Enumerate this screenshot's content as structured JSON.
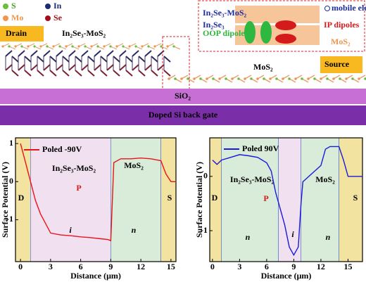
{
  "diagram": {
    "atoms": [
      "S",
      "In",
      "Mo",
      "Se"
    ],
    "drain": "Drain",
    "heterostructure": "In₂Se₃-MoS₂",
    "mos2": "MoS₂",
    "source": "Source",
    "sio2": "SiO₂",
    "gate": "Doped Si back gate",
    "inset": {
      "top": "In₂Se₃-MoS₂",
      "in2se3": "In₂Se₃",
      "oop": "OOP dipoles",
      "mobile": "mobile electrons",
      "ip": "IP dipoles",
      "mos2": "MoS₂"
    }
  },
  "chart_data": [
    {
      "type": "line",
      "xlabel": "Distance (μm)",
      "ylabel": "Surface Potential (V)",
      "xlim": [
        -0.5,
        15.5
      ],
      "ylim": [
        -2.1,
        1.15
      ],
      "xticks": [
        0,
        3,
        6,
        9,
        12,
        15
      ],
      "yticks": [
        1,
        0,
        -1
      ],
      "regions": [
        {
          "start": -0.5,
          "end": 1,
          "color": "#f3e3a0"
        },
        {
          "start": 1,
          "end": 9,
          "color": "#f1e1f0"
        },
        {
          "start": 9,
          "end": 14,
          "color": "#d9ecd9"
        },
        {
          "start": 14,
          "end": 15.5,
          "color": "#f3e3a0"
        }
      ],
      "annotations": [
        "D",
        "i",
        "n",
        "S",
        "In₂Se₃-MoS₂",
        "MoS₂",
        "P"
      ],
      "series": [
        {
          "name": "Poled -90V",
          "color": "#e8141a",
          "x": [
            0,
            0.5,
            1,
            1.5,
            2,
            2.3,
            3,
            4,
            5,
            6,
            7,
            8,
            8.7,
            9,
            9.3,
            10,
            11,
            12,
            13,
            14,
            14.5,
            15,
            15.5
          ],
          "values": [
            1,
            0.5,
            0,
            -0.5,
            -0.85,
            -1,
            -1.35,
            -1.4,
            -1.42,
            -1.45,
            -1.47,
            -1.5,
            -1.52,
            -1.55,
            0.5,
            0.6,
            0.6,
            0.62,
            0.6,
            0.55,
            0.2,
            0,
            0
          ]
        }
      ]
    },
    {
      "type": "line",
      "xlabel": "Distance (μm)",
      "ylabel": "Surface Potential (V)",
      "xlim": [
        -0.3,
        16.6
      ],
      "ylim": [
        -1.57,
        0.71
      ],
      "xticks": [
        0,
        3,
        6,
        9,
        12,
        15
      ],
      "yticks": [
        0,
        -1
      ],
      "regions": [
        {
          "start": -0.3,
          "end": 1,
          "color": "#f3e3a0"
        },
        {
          "start": 1,
          "end": 7.3,
          "color": "#d9ecd9"
        },
        {
          "start": 7.3,
          "end": 9.8,
          "color": "#f1e1f0"
        },
        {
          "start": 9.8,
          "end": 14,
          "color": "#d9ecd9"
        },
        {
          "start": 14,
          "end": 16.6,
          "color": "#f3e3a0"
        }
      ],
      "annotations": [
        "D",
        "n",
        "i",
        "n",
        "S",
        "In₂Se₃-MoS₂",
        "MoS₂",
        "P"
      ],
      "series": [
        {
          "name": "Poled 90V",
          "color": "#1a1adc",
          "x": [
            0,
            0.5,
            1,
            2,
            3,
            4,
            5,
            6,
            6.5,
            7,
            7.5,
            8,
            8.5,
            9,
            9.5,
            9.8,
            10,
            11,
            12,
            12.5,
            13,
            14,
            14.5,
            15,
            16,
            16.6
          ],
          "values": [
            0.3,
            0.22,
            0.3,
            0.35,
            0.4,
            0.38,
            0.35,
            0.25,
            0.1,
            -0.3,
            -0.6,
            -0.9,
            -1.3,
            -1.45,
            -1.3,
            -0.5,
            -0.1,
            0.05,
            0.2,
            0.5,
            0.55,
            0.55,
            0.3,
            0,
            0,
            0
          ]
        }
      ]
    }
  ]
}
